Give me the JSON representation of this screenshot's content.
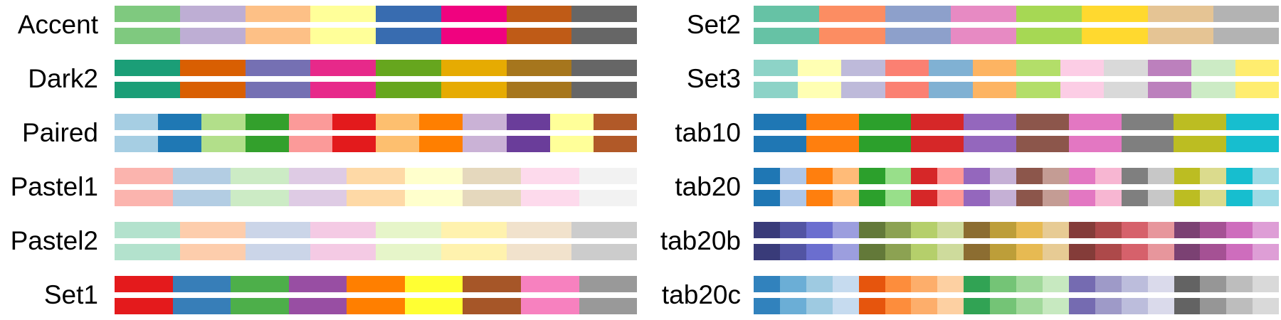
{
  "columns": [
    [
      {
        "name": "Accent",
        "colors": [
          "#7fc97f",
          "#beaed4",
          "#fdc086",
          "#ffff99",
          "#386cb0",
          "#f0027f",
          "#bf5b17",
          "#666666"
        ]
      },
      {
        "name": "Dark2",
        "colors": [
          "#1b9e77",
          "#d95f02",
          "#7570b3",
          "#e7298a",
          "#66a61e",
          "#e6ab02",
          "#a6761d",
          "#666666"
        ]
      },
      {
        "name": "Paired",
        "colors": [
          "#a6cee3",
          "#1f78b4",
          "#b2df8a",
          "#33a02c",
          "#fb9a99",
          "#e31a1c",
          "#fdbf6f",
          "#ff7f00",
          "#cab2d6",
          "#6a3d9a",
          "#ffff99",
          "#b15928"
        ]
      },
      {
        "name": "Pastel1",
        "colors": [
          "#fbb4ae",
          "#b3cde3",
          "#ccebc5",
          "#decbe4",
          "#fed9a6",
          "#ffffcc",
          "#e5d8bd",
          "#fddaec",
          "#f2f2f2"
        ]
      },
      {
        "name": "Pastel2",
        "colors": [
          "#b3e2cd",
          "#fdcdac",
          "#cbd5e8",
          "#f4cae4",
          "#e6f5c9",
          "#fff2ae",
          "#f1e2cc",
          "#cccccc"
        ]
      },
      {
        "name": "Set1",
        "colors": [
          "#e41a1c",
          "#377eb8",
          "#4daf4a",
          "#984ea3",
          "#ff7f00",
          "#ffff33",
          "#a65628",
          "#f781bf",
          "#999999"
        ]
      }
    ],
    [
      {
        "name": "Set2",
        "colors": [
          "#66c2a5",
          "#fc8d62",
          "#8da0cb",
          "#e78ac3",
          "#a6d854",
          "#ffd92f",
          "#e5c494",
          "#b3b3b3"
        ]
      },
      {
        "name": "Set3",
        "colors": [
          "#8dd3c7",
          "#ffffb3",
          "#bebada",
          "#fb8072",
          "#80b1d3",
          "#fdb462",
          "#b3de69",
          "#fccde5",
          "#d9d9d9",
          "#bc80bd",
          "#ccebc5",
          "#ffed6f"
        ]
      },
      {
        "name": "tab10",
        "colors": [
          "#1f77b4",
          "#ff7f0e",
          "#2ca02c",
          "#d62728",
          "#9467bd",
          "#8c564b",
          "#e377c2",
          "#7f7f7f",
          "#bcbd22",
          "#17becf"
        ]
      },
      {
        "name": "tab20",
        "colors": [
          "#1f77b4",
          "#aec7e8",
          "#ff7f0e",
          "#ffbb78",
          "#2ca02c",
          "#98df8a",
          "#d62728",
          "#ff9896",
          "#9467bd",
          "#c5b0d5",
          "#8c564b",
          "#c49c94",
          "#e377c2",
          "#f7b6d2",
          "#7f7f7f",
          "#c7c7c7",
          "#bcbd22",
          "#dbdb8d",
          "#17becf",
          "#9edae5"
        ]
      },
      {
        "name": "tab20b",
        "colors": [
          "#393b79",
          "#5254a3",
          "#6b6ecf",
          "#9c9ede",
          "#637939",
          "#8ca252",
          "#b5cf6b",
          "#cedb9c",
          "#8c6d31",
          "#bd9e39",
          "#e7ba52",
          "#e7cb94",
          "#843c39",
          "#ad494a",
          "#d6616b",
          "#e7969c",
          "#7b4173",
          "#a55194",
          "#ce6dbd",
          "#de9ed6"
        ]
      },
      {
        "name": "tab20c",
        "colors": [
          "#3182bd",
          "#6baed6",
          "#9ecae1",
          "#c6dbef",
          "#e6550d",
          "#fd8d3c",
          "#fdae6b",
          "#fdd0a2",
          "#31a354",
          "#74c476",
          "#a1d99b",
          "#c7e9c0",
          "#756bb1",
          "#9e9ac8",
          "#bcbddc",
          "#dadaeb",
          "#636363",
          "#969696",
          "#bdbdbd",
          "#d9d9d9"
        ]
      }
    ]
  ]
}
